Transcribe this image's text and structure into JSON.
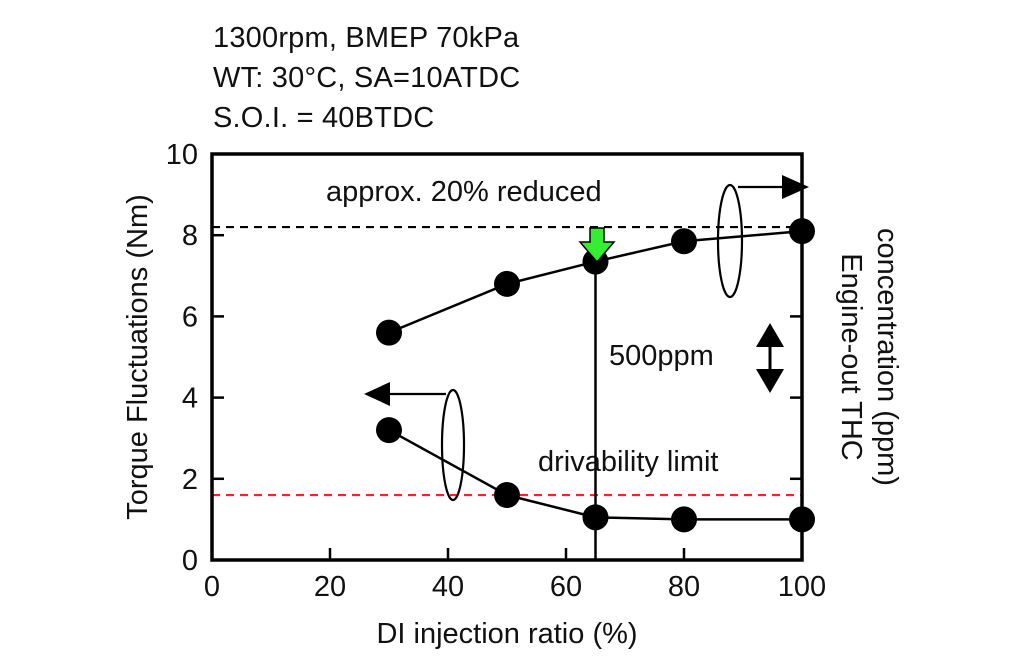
{
  "conditions": [
    "1300rpm, BMEP 70kPa",
    "WT: 30°C, SA=10ATDC",
    "S.O.I. = 40BTDC"
  ],
  "chart_data": {
    "type": "scatter",
    "xlabel": "DI injection ratio (%)",
    "ylabel": "Torque Fluctuations (Nm)",
    "y2label_line1": "Engine-out THC",
    "y2label_line2": "concentration (ppm)",
    "xlim": [
      0,
      100
    ],
    "ylim": [
      0,
      10
    ],
    "x_ticks": [
      0,
      20,
      40,
      60,
      80,
      100
    ],
    "y_ticks": [
      0,
      2,
      4,
      6,
      8,
      10
    ],
    "series": [
      {
        "axis": "left",
        "x": [
          30,
          50,
          65,
          80,
          100
        ],
        "y": [
          3.2,
          1.6,
          1.05,
          1.0,
          1.0
        ]
      },
      {
        "axis": "right",
        "x": [
          30,
          50,
          65,
          80,
          100
        ],
        "y_plot_position": [
          5.6,
          6.8,
          7.35,
          7.85,
          8.1
        ]
      }
    ],
    "reference_lines": [
      {
        "label": "approx. 20% reduced",
        "y": 8.2,
        "color": "#000000",
        "style": "dashed"
      },
      {
        "label": "drivability limit",
        "y": 1.6,
        "color": "#ff2020",
        "style": "dashed"
      }
    ],
    "scale_bar_label": "500ppm",
    "marker_x": 65,
    "marker_color": "#33ee33",
    "grid": false
  }
}
